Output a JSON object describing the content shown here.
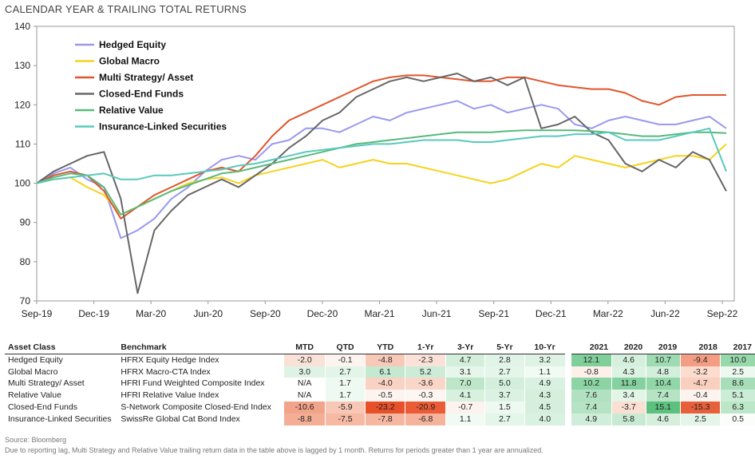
{
  "title": "CALENDAR YEAR & TRAILING TOTAL RETURNS",
  "chart_data": {
    "type": "line",
    "ylim": [
      70,
      140
    ],
    "yticks": [
      70,
      80,
      90,
      100,
      110,
      120,
      130,
      140
    ],
    "x_labels": [
      "Sep-19",
      "Dec-19",
      "Mar-20",
      "Jun-20",
      "Sep-20",
      "Dec-20",
      "Mar-21",
      "Jun-21",
      "Sep-21",
      "Dec-21",
      "Mar-22",
      "Jun-22",
      "Sep-22"
    ],
    "legend_position": "top-left",
    "grid": false,
    "series": [
      {
        "name": "Hedged Equity",
        "color": "#9999ee",
        "values": [
          100,
          102.5,
          104,
          101,
          99,
          86,
          88,
          91,
          96,
          99,
          103,
          106,
          107,
          106,
          110,
          111,
          114,
          114,
          113,
          115,
          117,
          116,
          118,
          119,
          120,
          121,
          119,
          120,
          118,
          119,
          120,
          119,
          115,
          114,
          116,
          117,
          116,
          115,
          115,
          116,
          117,
          114
        ]
      },
      {
        "name": "Global  Macro",
        "color": "#f5d31e",
        "values": [
          100,
          101,
          101.5,
          99,
          97,
          92,
          94,
          96,
          98,
          100,
          101,
          101.5,
          100,
          102,
          103,
          104,
          105,
          106,
          104,
          105,
          106,
          105,
          105,
          104,
          103,
          102,
          101,
          100,
          101,
          103,
          105,
          104,
          107,
          106,
          105,
          104,
          105,
          106,
          107,
          107,
          106,
          110
        ]
      },
      {
        "name": "Multi Strategy/ Asset",
        "color": "#e0552a",
        "values": [
          100,
          102,
          103,
          102,
          98,
          91,
          94,
          97,
          99,
          101,
          103,
          104,
          103,
          107,
          112,
          116,
          118,
          120,
          122,
          124,
          126,
          127,
          127.5,
          127.5,
          127,
          126.5,
          126,
          126,
          127,
          127,
          126,
          125,
          124.5,
          124,
          124,
          123,
          121,
          120,
          122,
          122.5,
          122.5,
          122.5
        ]
      },
      {
        "name": "Closed-End Funds",
        "color": "#666666",
        "values": [
          100,
          103,
          105,
          107,
          108,
          96,
          72,
          88,
          93,
          97,
          99,
          101,
          99,
          102,
          105,
          109,
          112,
          116,
          118,
          122,
          124,
          126,
          127,
          126,
          127,
          128,
          126,
          127,
          125,
          127,
          114,
          115,
          117,
          113,
          111,
          105,
          103,
          106,
          104,
          108,
          106,
          98
        ]
      },
      {
        "name": "Relative Value",
        "color": "#59b97a",
        "values": [
          100,
          101.5,
          102.5,
          102,
          99,
          92,
          94,
          96,
          98,
          99.5,
          101,
          102.5,
          103,
          104,
          105,
          106,
          107,
          108,
          109,
          110,
          110.5,
          111,
          111.5,
          112,
          112.5,
          113,
          113,
          113,
          113.3,
          113.5,
          113.5,
          113.5,
          113.5,
          113.3,
          113,
          112.5,
          112,
          112,
          112.5,
          113,
          113,
          112.8
        ]
      },
      {
        "name": "Insurance-Linked Securities",
        "color": "#59c9bd",
        "values": [
          100,
          101,
          101.5,
          102,
          102.5,
          101,
          101,
          102,
          102,
          102.5,
          103,
          103.5,
          104.5,
          105,
          106,
          107,
          108,
          108.5,
          109,
          109.5,
          110,
          110,
          110.5,
          111,
          111,
          111,
          110.5,
          110.5,
          111,
          111.5,
          112,
          112,
          112.5,
          112.5,
          113,
          111,
          111,
          111,
          112,
          113,
          114,
          103
        ]
      }
    ]
  },
  "table": {
    "headers": [
      "Asset Class",
      "Benchmark",
      "MTD",
      "QTD",
      "YTD",
      "1-Yr",
      "3-Yr",
      "5-Yr",
      "10-Yr",
      "2021",
      "2020",
      "2019",
      "2018",
      "2017"
    ],
    "rows": [
      {
        "cells": [
          "Hedged Equity",
          "HFRX Equity Hedge Index",
          "-2.0",
          "-0.1",
          "-4.8",
          "-2.3",
          "4.7",
          "2.8",
          "3.2",
          "12.1",
          "4.6",
          "10.7",
          "-9.4",
          "10.0"
        ]
      },
      {
        "cells": [
          "Global  Macro",
          "HFRX Macro-CTA Index",
          "3.0",
          "2.7",
          "6.1",
          "5.2",
          "3.1",
          "2.7",
          "1.1",
          "-0.8",
          "4.3",
          "4.8",
          "-3.2",
          "2.5"
        ]
      },
      {
        "cells": [
          "Multi Strategy/ Asset",
          "HFRI Fund Weighted Composite Index",
          "N/A",
          "1.7",
          "-4.0",
          "-3.6",
          "7.0",
          "5.0",
          "4.9",
          "10.2",
          "11.8",
          "10.4",
          "-4.7",
          "8.6"
        ]
      },
      {
        "cells": [
          "Relative Value",
          "HFRI Relative Value Index",
          "N/A",
          "1.7",
          "-0.5",
          "-0.3",
          "4.1",
          "3.7",
          "4.3",
          "7.6",
          "3.4",
          "7.4",
          "-0.4",
          "5.1"
        ]
      },
      {
        "cells": [
          "Closed-End Funds",
          "S-Network Composite Closed-End Index",
          "-10.6",
          "-5.9",
          "-23.2",
          "-20.9",
          "-0.7",
          "1.5",
          "4.5",
          "7.4",
          "-3.7",
          "15.1",
          "-15.3",
          "6.3"
        ]
      },
      {
        "cells": [
          "Insurance-Linked Securities",
          "SwissRe Global Cat Bond Index",
          "-8.8",
          "-7.5",
          "-7.8",
          "-6.8",
          "1.1",
          "2.7",
          "4.0",
          "4.9",
          "5.8",
          "4.6",
          "2.5",
          "0.5"
        ]
      }
    ],
    "colors": [
      [
        "",
        "",
        "#fbe2d8",
        "#fdf4f0",
        "#f8c9b8",
        "#fbe2d8",
        "#d3efdc",
        "#e1f4e7",
        "#dff3e5",
        "#7fcf9b",
        "#d6f0de",
        "#9fdbb2",
        "#f39e84",
        "#98d9ac"
      ],
      [
        "",
        "",
        "#dff3e5",
        "#e3f5e8",
        "#c4e9d0",
        "#cdecd7",
        "#e6f6ea",
        "#e4f5e9",
        "#f1faf3",
        "#fdf0ea",
        "#dcf2e2",
        "#d3efdc",
        "#fbdccf",
        "#edf8f0"
      ],
      [
        "",
        "",
        "#ffffff",
        "#eef9f1",
        "#f9d2c3",
        "#fad6c8",
        "#bde6c9",
        "#d3efdc",
        "#d9f1e1",
        "#8dd4a4",
        "#85d19f",
        "#90d6a6",
        "#f9cfbf",
        "#a7ddb8"
      ],
      [
        "",
        "",
        "#ffffff",
        "#eef9f1",
        "#fdf4f0",
        "#fdf6f2",
        "#d8f1df",
        "#dbf2e2",
        "#d5efdc",
        "#b1e1c0",
        "#e2f5e7",
        "#b6e3c4",
        "#fdf3ee",
        "#cbecd5"
      ],
      [
        "",
        "",
        "#f2a48a",
        "#f8c7b6",
        "#e8502a",
        "#ea5b36",
        "#fdf2ed",
        "#eef9f1",
        "#d5efdc",
        "#b6e3c4",
        "#fbdfd3",
        "#5cc17f",
        "#e8603b",
        "#bce6c8"
      ],
      [
        "",
        "",
        "#f4ae96",
        "#f6b9a3",
        "#f6b7a1",
        "#f5b39c",
        "#f1faf3",
        "#e4f5e9",
        "#d9f1e1",
        "#cfedd9",
        "#c8ead2",
        "#d5efdc",
        "#e4f5e9",
        "#fbfdfb"
      ]
    ]
  },
  "footer": {
    "source": "Source: Bloomberg",
    "note": "Due to reporting lag, Multi Strategy and Relative Value trailing return data in the table above is lagged by 1 month. Returns for periods greater than 1 year are annualized."
  }
}
